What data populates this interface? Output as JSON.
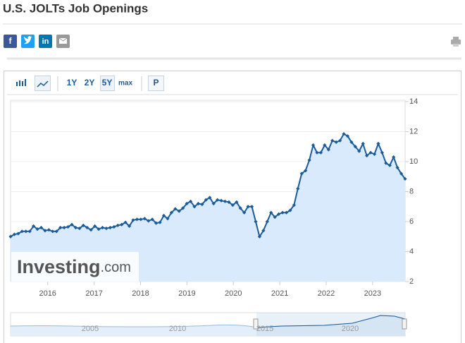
{
  "header": {
    "title": "U.S. JOLTs Job Openings",
    "share": [
      "f",
      "in"
    ]
  },
  "toolbar": {
    "ranges": [
      "1Y",
      "2Y",
      "5Y",
      "max"
    ],
    "extra": "P"
  },
  "watermark": [
    "Investing",
    ".com"
  ],
  "navigator": {
    "labels": [
      "2005",
      "2010",
      "2015",
      "2020"
    ]
  },
  "chart_data": {
    "type": "area-line",
    "color": "#1a5b9c",
    "fill": "#d8eafc",
    "grid": true,
    "xlim": [
      2015.2,
      2023.7
    ],
    "xticks": [
      2016,
      2017,
      2018,
      2019,
      2020,
      2021,
      2022,
      2023
    ],
    "ylim": [
      2,
      14
    ],
    "yticks": [
      2,
      4,
      6,
      8,
      10,
      12,
      14
    ],
    "values": [
      5.0,
      5.15,
      5.2,
      5.35,
      5.35,
      5.35,
      5.7,
      5.5,
      5.6,
      5.4,
      5.45,
      5.35,
      5.35,
      5.6,
      5.6,
      5.65,
      5.8,
      5.6,
      5.55,
      5.75,
      5.6,
      5.45,
      5.7,
      5.5,
      5.6,
      5.55,
      5.6,
      5.65,
      5.75,
      5.8,
      5.95,
      5.7,
      6.1,
      6.15,
      6.15,
      6.2,
      6.05,
      6.15,
      5.9,
      5.95,
      6.4,
      6.2,
      6.6,
      6.85,
      6.7,
      6.9,
      7.2,
      7.35,
      7.0,
      7.2,
      7.15,
      7.45,
      7.6,
      7.2,
      7.45,
      7.4,
      7.35,
      7.3,
      7.1,
      7.3,
      6.9,
      6.6,
      7.0,
      7.0,
      6.0,
      5.0,
      5.4,
      6.0,
      6.6,
      6.3,
      6.5,
      6.6,
      6.6,
      6.75,
      7.1,
      8.2,
      9.2,
      9.4,
      10.1,
      11.1,
      10.6,
      10.6,
      11.1,
      10.8,
      11.4,
      11.3,
      11.4,
      11.85,
      11.7,
      11.3,
      11.0,
      10.7,
      11.2,
      10.4,
      10.6,
      10.5,
      11.2,
      10.6,
      9.9,
      9.75,
      10.3,
      9.6,
      9.2,
      8.85
    ]
  }
}
